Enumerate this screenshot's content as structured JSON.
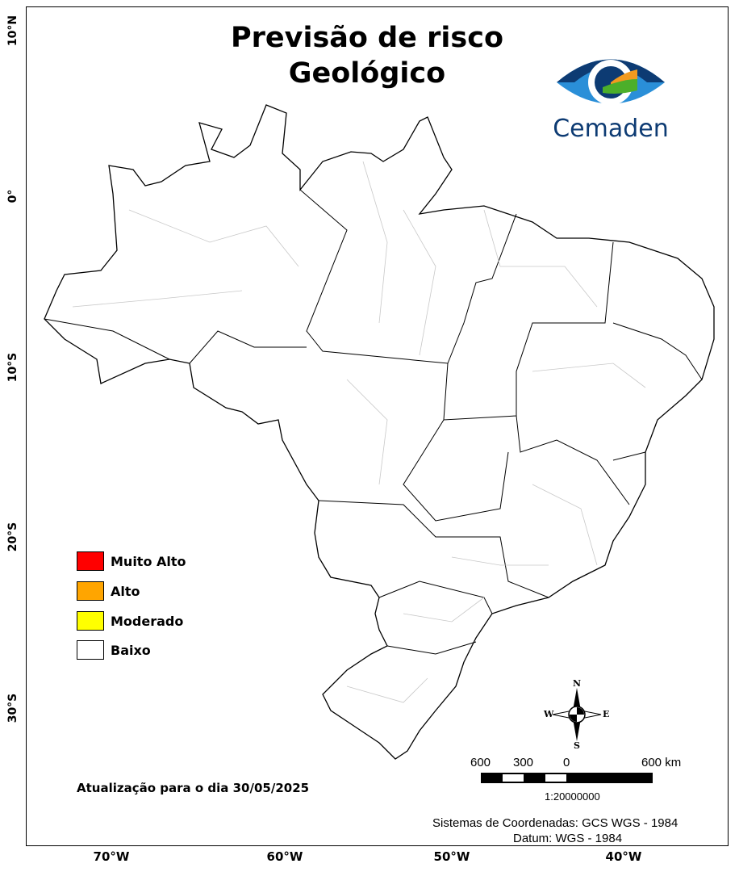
{
  "title_line1": "Previsão de risco",
  "title_line2": "Geológico",
  "logo": {
    "text": "Cemaden",
    "colors": [
      "#0d3b73",
      "#2a8fd8",
      "#f29a1f",
      "#4caf2a"
    ]
  },
  "lat_labels": [
    "10°N",
    "0°",
    "10°S",
    "20°S",
    "30°S"
  ],
  "lon_labels": [
    "70°W",
    "60°W",
    "50°W",
    "40°W"
  ],
  "legend": [
    {
      "label": "Muito Alto",
      "color": "#ff0000"
    },
    {
      "label": "Alto",
      "color": "#ffa500"
    },
    {
      "label": "Moderado",
      "color": "#ffff00"
    },
    {
      "label": "Baixo",
      "color": "#ffffff"
    }
  ],
  "update_text": "Atualização para o dia 30/05/2025",
  "compass": {
    "n": "N",
    "s": "S",
    "e": "E",
    "w": "W"
  },
  "scale": {
    "labels": [
      "600",
      "300",
      "0",
      "600 km"
    ],
    "ratio": "1:20000000"
  },
  "coord_system": "Sistemas de Coordenadas: GCS WGS - 1984",
  "datum": "Datum: WGS - 1984"
}
